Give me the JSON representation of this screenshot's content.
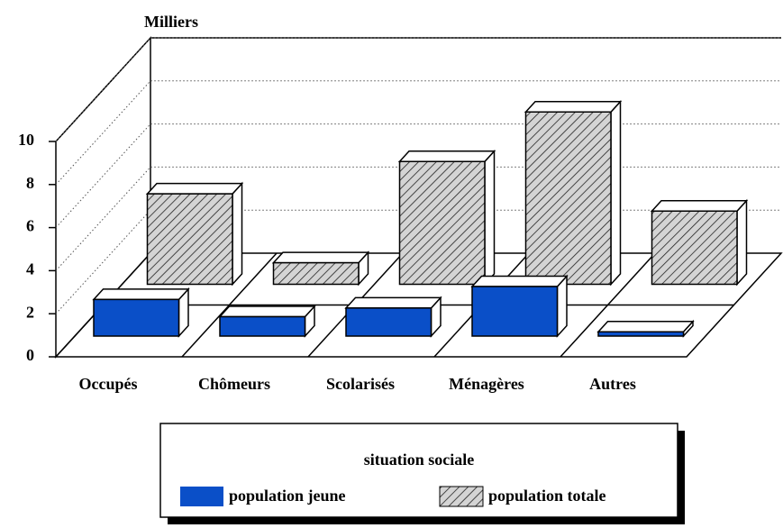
{
  "chart_data": {
    "type": "bar3d",
    "y_axis_label": "Milliers",
    "categories": [
      "Occupés",
      "Chômeurs",
      "Scolarisés",
      "Ménagères",
      "Autres"
    ],
    "series": [
      {
        "name": "population jeune",
        "color": "#0a4fc8",
        "values": [
          1.7,
          0.9,
          1.3,
          2.3,
          0.2
        ]
      },
      {
        "name": "population totale",
        "color": "#cfcfcf",
        "pattern": "hatched",
        "values": [
          4.2,
          1.0,
          5.7,
          8.0,
          3.4
        ]
      }
    ],
    "ylim": [
      0,
      10
    ],
    "yticks": [
      0,
      2,
      4,
      6,
      8,
      10
    ],
    "grid": true,
    "legend_title": "situation sociale",
    "legend": "bottom"
  }
}
